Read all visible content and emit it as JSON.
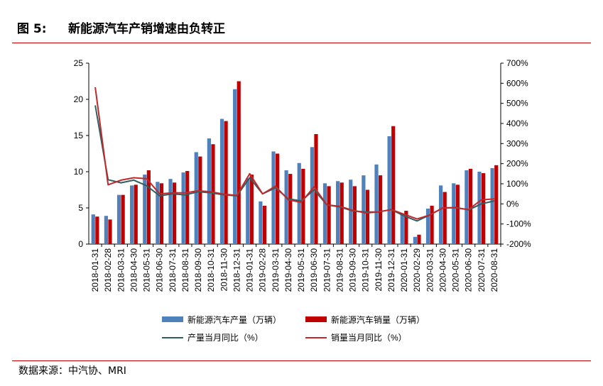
{
  "figure": {
    "label": "图 5:",
    "title": "新能源汽车产销增速由负转正",
    "source": "数据来源：中汽协、MRI"
  },
  "colors": {
    "production_bar": "#4f81bd",
    "sales_bar": "#c00000",
    "production_line": "#2f5f5f",
    "sales_line": "#c0282c",
    "rule": "#c00000"
  },
  "chart_data": {
    "type": "bar",
    "title": "",
    "xlabel": "",
    "ylabel": "",
    "ylim": [
      0,
      25
    ],
    "y2lim": [
      -200,
      700
    ],
    "yticks": [
      "0",
      "5",
      "10",
      "15",
      "20",
      "25"
    ],
    "y2ticks": [
      "-200%",
      "-100%",
      "0%",
      "100%",
      "200%",
      "300%",
      "400%",
      "500%",
      "600%",
      "700%"
    ],
    "categories": [
      "2018-01-31",
      "2018-02-28",
      "2018-03-31",
      "2018-04-30",
      "2018-05-31",
      "2018-06-30",
      "2018-07-31",
      "2018-08-31",
      "2018-09-30",
      "2018-10-31",
      "2018-11-30",
      "2018-12-31",
      "2019-01-31",
      "2019-02-28",
      "2019-03-31",
      "2019-04-30",
      "2019-05-31",
      "2019-06-30",
      "2019-07-31",
      "2019-08-31",
      "2019-09-30",
      "2019-10-31",
      "2019-11-30",
      "2019-12-31",
      "2020-01-31",
      "2020-02-29",
      "2020-03-31",
      "2020-04-30",
      "2020-05-31",
      "2020-06-30",
      "2020-07-31",
      "2020-08-31"
    ],
    "series": [
      {
        "name": "新能源汽车产量（万辆）",
        "kind": "bar",
        "axis": "left",
        "values": [
          4.1,
          3.9,
          6.8,
          8.1,
          9.6,
          8.6,
          9.0,
          9.9,
          12.7,
          14.6,
          17.3,
          21.4,
          9.1,
          5.9,
          12.8,
          10.2,
          11.2,
          13.4,
          8.4,
          8.7,
          8.9,
          9.5,
          11.0,
          14.9,
          4.1,
          1.0,
          4.9,
          8.1,
          8.4,
          10.2,
          10.0,
          10.5
        ]
      },
      {
        "name": "新能源汽车销量（万辆）",
        "kind": "bar",
        "axis": "left",
        "values": [
          3.8,
          3.4,
          6.8,
          8.2,
          10.2,
          8.4,
          8.5,
          10.1,
          12.1,
          13.8,
          17.0,
          22.5,
          9.6,
          5.3,
          12.5,
          9.7,
          10.4,
          15.2,
          8.0,
          8.5,
          8.0,
          7.5,
          9.5,
          16.3,
          4.6,
          1.3,
          5.3,
          7.2,
          8.2,
          10.4,
          9.8,
          10.9
        ]
      },
      {
        "name": "产量当月同比（%）",
        "kind": "line",
        "axis": "right",
        "values": [
          490,
          120,
          105,
          118,
          90,
          40,
          50,
          45,
          60,
          55,
          45,
          40,
          130,
          50,
          80,
          25,
          15,
          70,
          -5,
          -15,
          -35,
          -40,
          -40,
          -28,
          -60,
          -85,
          -55,
          -20,
          -18,
          -30,
          0,
          15
        ]
      },
      {
        "name": "销量当月同比（%）",
        "kind": "line",
        "axis": "right",
        "values": [
          580,
          95,
          118,
          130,
          125,
          50,
          55,
          55,
          65,
          60,
          48,
          42,
          150,
          50,
          88,
          20,
          8,
          85,
          -5,
          -12,
          -32,
          -45,
          -40,
          -28,
          -52,
          -75,
          -55,
          -20,
          -20,
          -28,
          20,
          25
        ]
      }
    ],
    "legend_position": "bottom",
    "grid": false
  }
}
